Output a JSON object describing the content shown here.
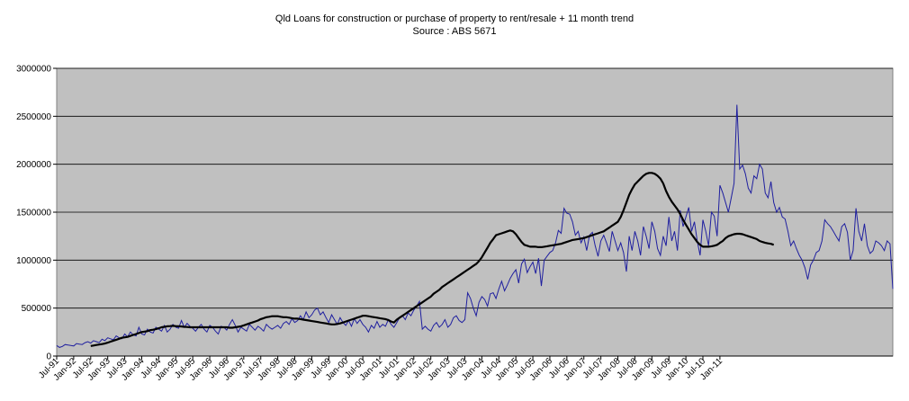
{
  "chart_data": {
    "type": "line",
    "title": "Qld Loans for construction or purchase of property to rent/resale + 11 month trend",
    "subtitle": "Source : ABS 5671",
    "xlabel": "",
    "ylabel": "",
    "ylim": [
      0,
      3000000
    ],
    "yticks": [
      "0",
      "500000",
      "1000000",
      "1500000",
      "2000000",
      "2500000",
      "3000000"
    ],
    "grid": true,
    "legend": "none",
    "start": "Jul-91",
    "xtick_labels": [
      "Jul-91",
      "Jan-92",
      "Jul-92",
      "Jan-93",
      "Jul-93",
      "Jan-94",
      "Jul-94",
      "Jan-95",
      "Jul-95",
      "Jan-96",
      "Jul-96",
      "Jan-97",
      "Jul-97",
      "Jan-98",
      "Jul-98",
      "Jan-99",
      "Jul-99",
      "Jan-00",
      "Jul-00",
      "Jan-01",
      "Jul-01",
      "Jan-02",
      "Jul-02",
      "Jan-03",
      "Jul-03",
      "Jan-04",
      "Jul-04",
      "Jan-05",
      "Jul-05",
      "Jan-06",
      "Jul-06",
      "Jan-07",
      "Jul-07",
      "Jan-08",
      "Jul-08",
      "Jan-09",
      "Jul-09",
      "Jan-10",
      "Jul-10",
      "Jan-11"
    ],
    "colors": {
      "plot_bg": "#c0c0c0",
      "monthly": "#1f1f9f",
      "trend": "#000000",
      "grid": "#000000"
    },
    "series": [
      {
        "values": [
          110000,
          90000,
          100000,
          120000,
          115000,
          110000,
          105000,
          130000,
          125000,
          120000,
          140000,
          150000,
          135000,
          160000,
          150000,
          140000,
          175000,
          160000,
          190000,
          180000,
          170000,
          210000,
          190000,
          180000,
          230000,
          200000,
          250000,
          220000,
          210000,
          300000,
          230000,
          220000,
          280000,
          250000,
          240000,
          300000,
          280000,
          260000,
          320000,
          250000,
          280000,
          330000,
          300000,
          290000,
          370000,
          300000,
          340000,
          310000,
          290000,
          260000,
          300000,
          330000,
          280000,
          250000,
          320000,
          300000,
          260000,
          230000,
          310000,
          300000,
          270000,
          330000,
          380000,
          320000,
          250000,
          300000,
          280000,
          260000,
          330000,
          300000,
          270000,
          310000,
          290000,
          260000,
          330000,
          300000,
          280000,
          300000,
          320000,
          290000,
          340000,
          360000,
          330000,
          390000,
          350000,
          370000,
          420000,
          380000,
          460000,
          400000,
          430000,
          480000,
          500000,
          430000,
          460000,
          400000,
          350000,
          430000,
          380000,
          330000,
          400000,
          350000,
          320000,
          370000,
          310000,
          390000,
          340000,
          380000,
          330000,
          300000,
          250000,
          320000,
          290000,
          360000,
          300000,
          330000,
          310000,
          380000,
          330000,
          300000,
          350000,
          400000,
          420000,
          380000,
          450000,
          420000,
          480000,
          520000,
          570000,
          280000,
          310000,
          280000,
          260000,
          320000,
          350000,
          300000,
          330000,
          380000,
          300000,
          330000,
          400000,
          420000,
          370000,
          350000,
          380000,
          660000,
          600000,
          500000,
          420000,
          560000,
          620000,
          590000,
          520000,
          650000,
          660000,
          600000,
          700000,
          780000,
          680000,
          740000,
          810000,
          860000,
          900000,
          760000,
          960000,
          1010000,
          870000,
          930000,
          980000,
          860000,
          1020000,
          730000,
          1000000,
          1040000,
          1080000,
          1100000,
          1180000,
          1310000,
          1280000,
          1540000,
          1490000,
          1480000,
          1400000,
          1260000,
          1300000,
          1180000,
          1240000,
          1100000,
          1260000,
          1290000,
          1150000,
          1040000,
          1200000,
          1260000,
          1180000,
          1090000,
          1300000,
          1200000,
          1100000,
          1180000,
          1080000,
          880000,
          1250000,
          1100000,
          1300000,
          1200000,
          1050000,
          1350000,
          1250000,
          1120000,
          1400000,
          1300000,
          1120000,
          1050000,
          1250000,
          1150000,
          1450000,
          1200000,
          1300000,
          1100000,
          1520000,
          1350000,
          1450000,
          1550000,
          1300000,
          1400000,
          1200000,
          1050000,
          1420000,
          1300000,
          1150000,
          1500000,
          1460000,
          1250000,
          1780000,
          1700000,
          1600000,
          1500000,
          1650000,
          1800000,
          2620000,
          1950000,
          1990000,
          1900000,
          1750000,
          1700000,
          1880000,
          1850000,
          2000000,
          1950000,
          1700000,
          1650000,
          1820000,
          1600000,
          1500000,
          1550000,
          1450000,
          1430000,
          1300000,
          1150000,
          1200000,
          1120000,
          1050000,
          1000000,
          920000,
          800000,
          950000,
          1000000,
          1080000,
          1100000,
          1200000,
          1420000,
          1380000,
          1350000,
          1300000,
          1250000,
          1200000,
          1350000,
          1380000,
          1290000,
          1000000,
          1100000,
          1540000,
          1300000,
          1200000,
          1380000,
          1150000,
          1070000,
          1100000,
          1200000,
          1180000,
          1150000,
          1100000,
          1200000,
          1170000,
          700000
        ]
      },
      {
        "start_index": 12,
        "values": [
          105000,
          110000,
          115000,
          120000,
          125000,
          130000,
          140000,
          150000,
          160000,
          170000,
          180000,
          190000,
          195000,
          200000,
          210000,
          220000,
          230000,
          240000,
          250000,
          255000,
          260000,
          270000,
          275000,
          280000,
          290000,
          300000,
          305000,
          310000,
          312000,
          315000,
          312000,
          310000,
          308000,
          305000,
          303000,
          300000,
          300000,
          300000,
          300000,
          300000,
          300000,
          300000,
          300000,
          300000,
          300000,
          300000,
          300000,
          300000,
          300000,
          295000,
          295000,
          300000,
          305000,
          310000,
          320000,
          330000,
          340000,
          350000,
          360000,
          370000,
          385000,
          395000,
          405000,
          410000,
          415000,
          415000,
          415000,
          410000,
          405000,
          405000,
          400000,
          395000,
          390000,
          390000,
          385000,
          380000,
          375000,
          370000,
          365000,
          360000,
          355000,
          350000,
          345000,
          340000,
          335000,
          330000,
          330000,
          335000,
          340000,
          350000,
          360000,
          370000,
          380000,
          390000,
          400000,
          410000,
          420000,
          420000,
          415000,
          410000,
          405000,
          400000,
          395000,
          390000,
          385000,
          375000,
          360000,
          350000,
          380000,
          400000,
          420000,
          440000,
          460000,
          480000,
          500000,
          520000,
          540000,
          560000,
          580000,
          600000,
          620000,
          650000,
          670000,
          690000,
          720000,
          740000,
          760000,
          780000,
          800000,
          820000,
          840000,
          860000,
          880000,
          900000,
          920000,
          940000,
          960000,
          990000,
          1030000,
          1080000,
          1130000,
          1180000,
          1220000,
          1260000,
          1270000,
          1280000,
          1290000,
          1300000,
          1310000,
          1300000,
          1270000,
          1230000,
          1190000,
          1160000,
          1150000,
          1140000,
          1140000,
          1140000,
          1135000,
          1135000,
          1140000,
          1145000,
          1150000,
          1155000,
          1160000,
          1165000,
          1170000,
          1180000,
          1190000,
          1200000,
          1210000,
          1215000,
          1220000,
          1225000,
          1230000,
          1240000,
          1250000,
          1260000,
          1270000,
          1280000,
          1290000,
          1300000,
          1320000,
          1340000,
          1360000,
          1380000,
          1400000,
          1450000,
          1520000,
          1600000,
          1680000,
          1740000,
          1790000,
          1820000,
          1850000,
          1880000,
          1900000,
          1910000,
          1910000,
          1900000,
          1880000,
          1850000,
          1800000,
          1720000,
          1660000,
          1610000,
          1570000,
          1530000,
          1480000,
          1420000,
          1370000,
          1320000,
          1270000,
          1230000,
          1190000,
          1160000,
          1140000,
          1140000,
          1140000,
          1145000,
          1150000,
          1160000,
          1180000,
          1200000,
          1230000,
          1250000,
          1260000,
          1270000,
          1275000,
          1275000,
          1270000,
          1260000,
          1250000,
          1240000,
          1230000,
          1220000,
          1200000,
          1190000,
          1180000,
          1175000,
          1170000,
          1160000
        ]
      }
    ]
  }
}
